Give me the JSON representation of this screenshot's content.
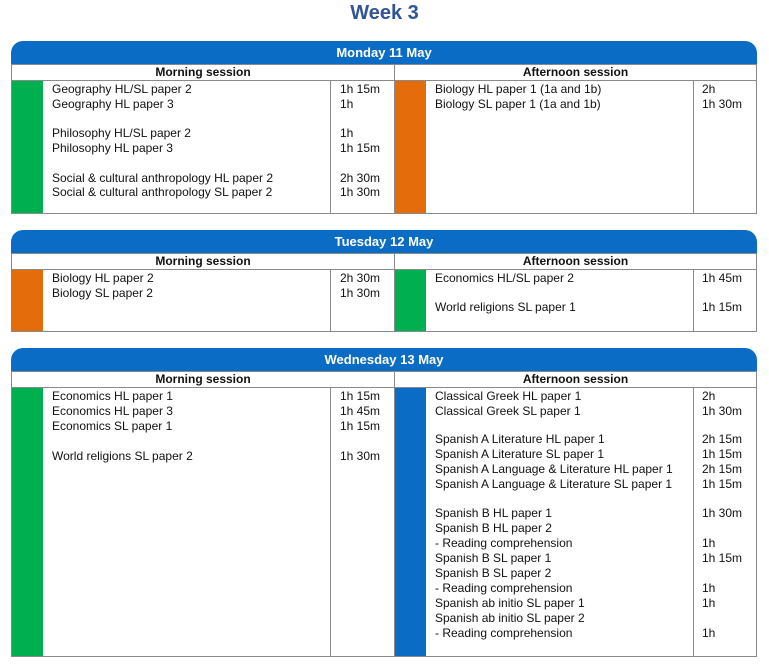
{
  "week_title": "Week 3",
  "colors": {
    "header": "#0a6cc4",
    "green": "#00b050",
    "orange": "#e46c0a",
    "blue": "#0a6cc4"
  },
  "days": [
    {
      "title": "Monday 11 May",
      "morning": {
        "label": "Morning session",
        "bar_color": "#00b050",
        "papers": [
          {
            "paper": "Geography HL/SL paper 2",
            "duration": "1h 15m"
          },
          {
            "paper": "Geography HL paper 3",
            "duration": "1h"
          },
          {
            "paper": "Philosophy HL/SL paper 2",
            "duration": "1h"
          },
          {
            "paper": "Philosophy HL paper 3",
            "duration": "1h 15m"
          },
          {
            "paper": "Social & cultural anthropology HL paper 2",
            "duration": "2h 30m"
          },
          {
            "paper": "Social & cultural anthropology SL paper 2",
            "duration": "1h 30m"
          }
        ]
      },
      "afternoon": {
        "label": "Afternoon session",
        "bar_color": "#e46c0a",
        "papers": [
          {
            "paper": "Biology HL paper 1 (1a and 1b)",
            "duration": "2h"
          },
          {
            "paper": "Biology SL paper 1 (1a and 1b)",
            "duration": "1h 30m"
          }
        ]
      }
    },
    {
      "title": "Tuesday 12 May",
      "morning": {
        "label": "Morning session",
        "bar_color": "#e46c0a",
        "papers": [
          {
            "paper": "Biology HL paper 2",
            "duration": "2h 30m"
          },
          {
            "paper": "Biology SL paper 2",
            "duration": "1h 30m"
          }
        ]
      },
      "afternoon": {
        "label": "Afternoon session",
        "bar_color": "#00b050",
        "papers": [
          {
            "paper": "Economics HL/SL paper 2",
            "duration": "1h 45m"
          },
          {
            "paper": "World religions SL paper 1",
            "duration": "1h 15m"
          }
        ]
      }
    },
    {
      "title": "Wednesday 13 May",
      "morning": {
        "label": "Morning session",
        "bar_color": "#00b050",
        "papers": [
          {
            "paper": "Economics HL paper 1",
            "duration": "1h 15m"
          },
          {
            "paper": "Economics HL paper 3",
            "duration": "1h 45m"
          },
          {
            "paper": "Economics SL paper 1",
            "duration": "1h 15m"
          },
          {
            "paper": "World religions SL paper 2",
            "duration": "1h 30m"
          }
        ]
      },
      "afternoon": {
        "label": "Afternoon session",
        "bar_color": "#0a6cc4",
        "papers": [
          {
            "paper": "Classical Greek HL paper 1",
            "duration": "2h"
          },
          {
            "paper": "Classical Greek SL paper 1",
            "duration": "1h 30m"
          },
          {
            "paper": "Spanish A Literature HL paper 1",
            "duration": "2h 15m"
          },
          {
            "paper": "Spanish A Literature SL paper 1",
            "duration": "1h 15m"
          },
          {
            "paper": "Spanish A Language & Literature HL paper 1",
            "duration": "2h 15m"
          },
          {
            "paper": "Spanish A Language & Literature SL paper 1",
            "duration": "1h 15m"
          },
          {
            "paper": "Spanish B HL paper 1",
            "duration": "1h 30m"
          },
          {
            "paper": "Spanish B HL paper 2",
            "duration": ""
          },
          {
            "paper": "- Reading comprehension",
            "duration": "1h"
          },
          {
            "paper": "Spanish B SL paper 1",
            "duration": "1h 15m"
          },
          {
            "paper": "Spanish B SL paper 2",
            "duration": ""
          },
          {
            "paper": "- Reading comprehension",
            "duration": "1h"
          },
          {
            "paper": "Spanish ab initio SL paper 1",
            "duration": "1h"
          },
          {
            "paper": "Spanish ab initio SL paper 2",
            "duration": ""
          },
          {
            "paper": "- Reading comprehension",
            "duration": "1h"
          }
        ]
      }
    }
  ]
}
